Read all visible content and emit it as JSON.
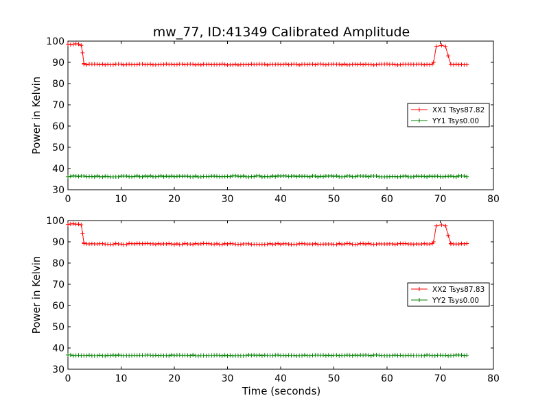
{
  "figure": {
    "title": "mw_77, ID:41349 Calibrated Amplitude",
    "xlabel": "Time (seconds)"
  },
  "chart_data": [
    {
      "type": "line",
      "ylabel": "Power in Kelvin",
      "xlim": [
        0,
        80
      ],
      "ylim": [
        30,
        100
      ],
      "xticks": [
        0,
        10,
        20,
        30,
        40,
        50,
        60,
        70,
        80
      ],
      "yticks": [
        30,
        40,
        50,
        60,
        70,
        80,
        90,
        100
      ],
      "grid": false,
      "legend": "center-right",
      "marker": "plus",
      "series": [
        {
          "name": "XX1 Tsys87.82",
          "color": "#ff0000",
          "segments": [
            {
              "x": [
                0,
                2.2
              ],
              "y": [
                98.5,
                98.5
              ]
            },
            {
              "x": [
                2.5,
                2.75,
                3.0
              ],
              "y": [
                98.0,
                94.5,
                89.5
              ]
            },
            {
              "x": [
                3.0,
                68.5
              ],
              "y": [
                89.0,
                89.0
              ]
            },
            {
              "x": [
                68.75,
                69.25,
                70.25,
                71.0
              ],
              "y": [
                90.0,
                97.5,
                98.0,
                97.5
              ]
            },
            {
              "x": [
                71.0,
                71.5,
                72.0
              ],
              "y": [
                97.5,
                93.0,
                89.0
              ]
            },
            {
              "x": [
                72.0,
                75.0
              ],
              "y": [
                89.0,
                89.0
              ]
            }
          ]
        },
        {
          "name": "YY1 Tsys0.00",
          "color": "#008000",
          "segments": [
            {
              "x": [
                0,
                75.0
              ],
              "y": [
                36.3,
                36.3
              ]
            }
          ]
        }
      ]
    },
    {
      "type": "line",
      "ylabel": "Power in Kelvin",
      "xlim": [
        0,
        80
      ],
      "ylim": [
        30,
        100
      ],
      "xticks": [
        0,
        10,
        20,
        30,
        40,
        50,
        60,
        70,
        80
      ],
      "yticks": [
        30,
        40,
        50,
        60,
        70,
        80,
        90,
        100
      ],
      "grid": false,
      "legend": "center-right",
      "marker": "plus",
      "series": [
        {
          "name": "XX2 Tsys87.83",
          "color": "#ff0000",
          "segments": [
            {
              "x": [
                0,
                2.2
              ],
              "y": [
                98.3,
                98.3
              ]
            },
            {
              "x": [
                2.5,
                2.75,
                3.0
              ],
              "y": [
                98.0,
                94.0,
                89.5
              ]
            },
            {
              "x": [
                3.0,
                68.5
              ],
              "y": [
                89.0,
                89.0
              ]
            },
            {
              "x": [
                68.75,
                69.25,
                70.25,
                71.0
              ],
              "y": [
                90.0,
                97.5,
                98.0,
                97.5
              ]
            },
            {
              "x": [
                71.0,
                71.5,
                72.0
              ],
              "y": [
                97.5,
                93.0,
                89.0
              ]
            },
            {
              "x": [
                72.0,
                75.0
              ],
              "y": [
                89.0,
                89.0
              ]
            }
          ]
        },
        {
          "name": "YY2 Tsys0.00",
          "color": "#008000",
          "segments": [
            {
              "x": [
                0,
                75.0
              ],
              "y": [
                36.5,
                36.5
              ]
            }
          ]
        }
      ]
    }
  ]
}
